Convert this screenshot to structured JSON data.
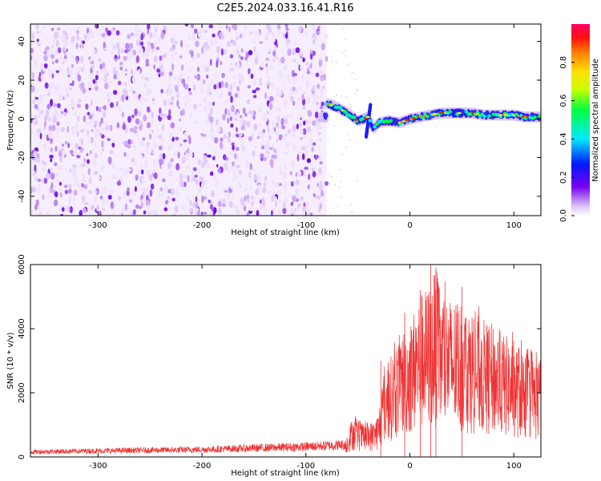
{
  "title": "C2E5.2024.033.16.41.R16",
  "chart_data": [
    {
      "type": "heatmap",
      "xlabel": "Height of straight line (km)",
      "ylabel": "Frequency (Hz)",
      "xlim": [
        -365,
        126
      ],
      "ylim": [
        -50,
        49
      ],
      "xticks": [
        "-300",
        "-200",
        "-100",
        "0",
        "100"
      ],
      "yticks": [
        "-40",
        "-20",
        "0",
        "20",
        "40"
      ],
      "colorbar": {
        "label": "Normalized spectral amplitude",
        "range": [
          0,
          1
        ],
        "ticks": [
          "0.0",
          "0.2",
          "0.4",
          "0.6",
          "0.8"
        ]
      },
      "features": {
        "noise_region_x": [
          -365,
          -80
        ],
        "signal_track": {
          "x": [
            -80,
            -70,
            -60,
            -50,
            -40,
            -35,
            -30,
            -20,
            -10,
            0,
            10,
            20,
            30,
            40,
            50,
            60,
            70,
            80,
            90,
            100,
            110,
            126
          ],
          "y": [
            8,
            6,
            3,
            -1,
            1,
            -5,
            -2,
            -1,
            -2,
            0,
            1,
            2,
            3,
            3,
            3,
            3,
            2,
            2,
            2,
            2,
            1,
            1
          ]
        }
      },
      "grid": false
    },
    {
      "type": "line",
      "xlabel": "Height of straight line (km)",
      "ylabel": "SNR (10 * v/v)",
      "xlim": [
        -365,
        126
      ],
      "ylim": [
        0,
        6000
      ],
      "xticks": [
        "-300",
        "-200",
        "-100",
        "0",
        "100"
      ],
      "yticks": [
        "0",
        "2000",
        "4000",
        "6000"
      ],
      "color": "#ee3333",
      "envelope": {
        "x": [
          -365,
          -300,
          -200,
          -100,
          -62,
          -55,
          -45,
          -35,
          -30,
          -25,
          -20,
          -10,
          0,
          10,
          20,
          25,
          30,
          40,
          50,
          60,
          70,
          80,
          90,
          100,
          110,
          126
        ],
        "y": [
          160,
          190,
          230,
          320,
          380,
          800,
          650,
          700,
          900,
          1700,
          1900,
          2400,
          2700,
          3200,
          3400,
          3700,
          3300,
          3100,
          3000,
          2900,
          2700,
          2600,
          2400,
          2300,
          2100,
          1900
        ]
      },
      "peaks": [
        {
          "x": 20,
          "y": 6000
        },
        {
          "x": 10,
          "y": 5200
        },
        {
          "x": 25,
          "y": 5900
        },
        {
          "x": 50,
          "y": 5300
        },
        {
          "x": -5,
          "y": 4500
        },
        {
          "x": -28,
          "y": 3000
        }
      ],
      "grid": false
    }
  ]
}
